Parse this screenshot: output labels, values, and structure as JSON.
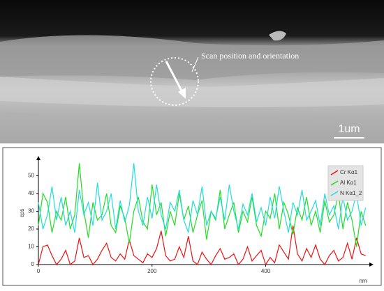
{
  "image": {
    "caption": "Scan position and orientation",
    "scale_bar": "1um"
  },
  "chart_data": {
    "type": "line",
    "ylabel": "cps",
    "xlabel": "nm",
    "xlim": [
      0,
      580
    ],
    "xticks": [
      0,
      200,
      400
    ],
    "ylim": [
      0,
      58
    ],
    "yticks": [
      0,
      10,
      20,
      30,
      40,
      50
    ],
    "x": [
      0,
      8,
      16,
      24,
      32,
      40,
      48,
      56,
      64,
      72,
      80,
      88,
      96,
      104,
      112,
      120,
      128,
      136,
      144,
      152,
      160,
      168,
      176,
      184,
      192,
      200,
      208,
      216,
      224,
      232,
      240,
      248,
      256,
      264,
      272,
      280,
      288,
      296,
      304,
      312,
      320,
      328,
      336,
      344,
      352,
      360,
      368,
      376,
      384,
      392,
      400,
      408,
      416,
      424,
      432,
      440,
      448,
      456,
      464,
      472,
      480,
      488,
      496,
      504,
      512,
      520,
      528,
      536,
      544,
      552,
      560,
      568,
      576
    ],
    "series": [
      {
        "name": "Cr Kα1",
        "color": "#ee1111",
        "values": [
          0,
          10,
          11,
          5,
          0,
          3,
          8,
          0,
          2,
          15,
          4,
          5,
          0,
          3,
          8,
          12,
          4,
          2,
          6,
          3,
          14,
          5,
          3,
          1,
          6,
          4,
          9,
          19,
          5,
          2,
          3,
          10,
          4,
          16,
          2,
          0,
          7,
          3,
          0,
          5,
          9,
          3,
          4,
          6,
          0,
          3,
          10,
          2,
          5,
          8,
          0,
          4,
          1,
          11,
          7,
          3,
          22,
          6,
          2,
          9,
          4,
          11,
          3,
          0,
          5,
          8,
          2,
          4,
          12,
          3,
          15,
          6,
          5
        ]
      },
      {
        "name": "Al Kα1",
        "color": "#22dd22",
        "values": [
          22,
          40,
          35,
          18,
          30,
          25,
          38,
          20,
          28,
          57,
          30,
          15,
          35,
          25,
          28,
          40,
          22,
          18,
          33,
          26,
          12,
          30,
          38,
          24,
          20,
          45,
          28,
          35,
          16,
          30,
          22,
          40,
          25,
          33,
          18,
          28,
          36,
          14,
          30,
          25,
          42,
          20,
          28,
          35,
          18,
          30,
          24,
          38,
          22,
          16,
          30,
          26,
          40,
          20,
          35,
          28,
          17,
          32,
          25,
          38,
          22,
          30,
          18,
          36,
          24,
          28,
          40,
          20,
          35,
          25,
          10,
          30,
          22
        ]
      },
      {
        "name": "N Kα1_2",
        "color": "#22dddd",
        "values": [
          35,
          20,
          28,
          44,
          25,
          38,
          22,
          30,
          18,
          42,
          28,
          35,
          22,
          46,
          25,
          30,
          40,
          20,
          36,
          24,
          33,
          57,
          30,
          22,
          38,
          26,
          45,
          28,
          20,
          35,
          30,
          42,
          25,
          18,
          36,
          28,
          44,
          22,
          30,
          26,
          38,
          25,
          45,
          30,
          20,
          34,
          28,
          40,
          24,
          32,
          22,
          38,
          26,
          44,
          30,
          18,
          35,
          28,
          42,
          25,
          30,
          36,
          22,
          40,
          28,
          33,
          20,
          38,
          25,
          30,
          40,
          22,
          32
        ]
      }
    ]
  }
}
